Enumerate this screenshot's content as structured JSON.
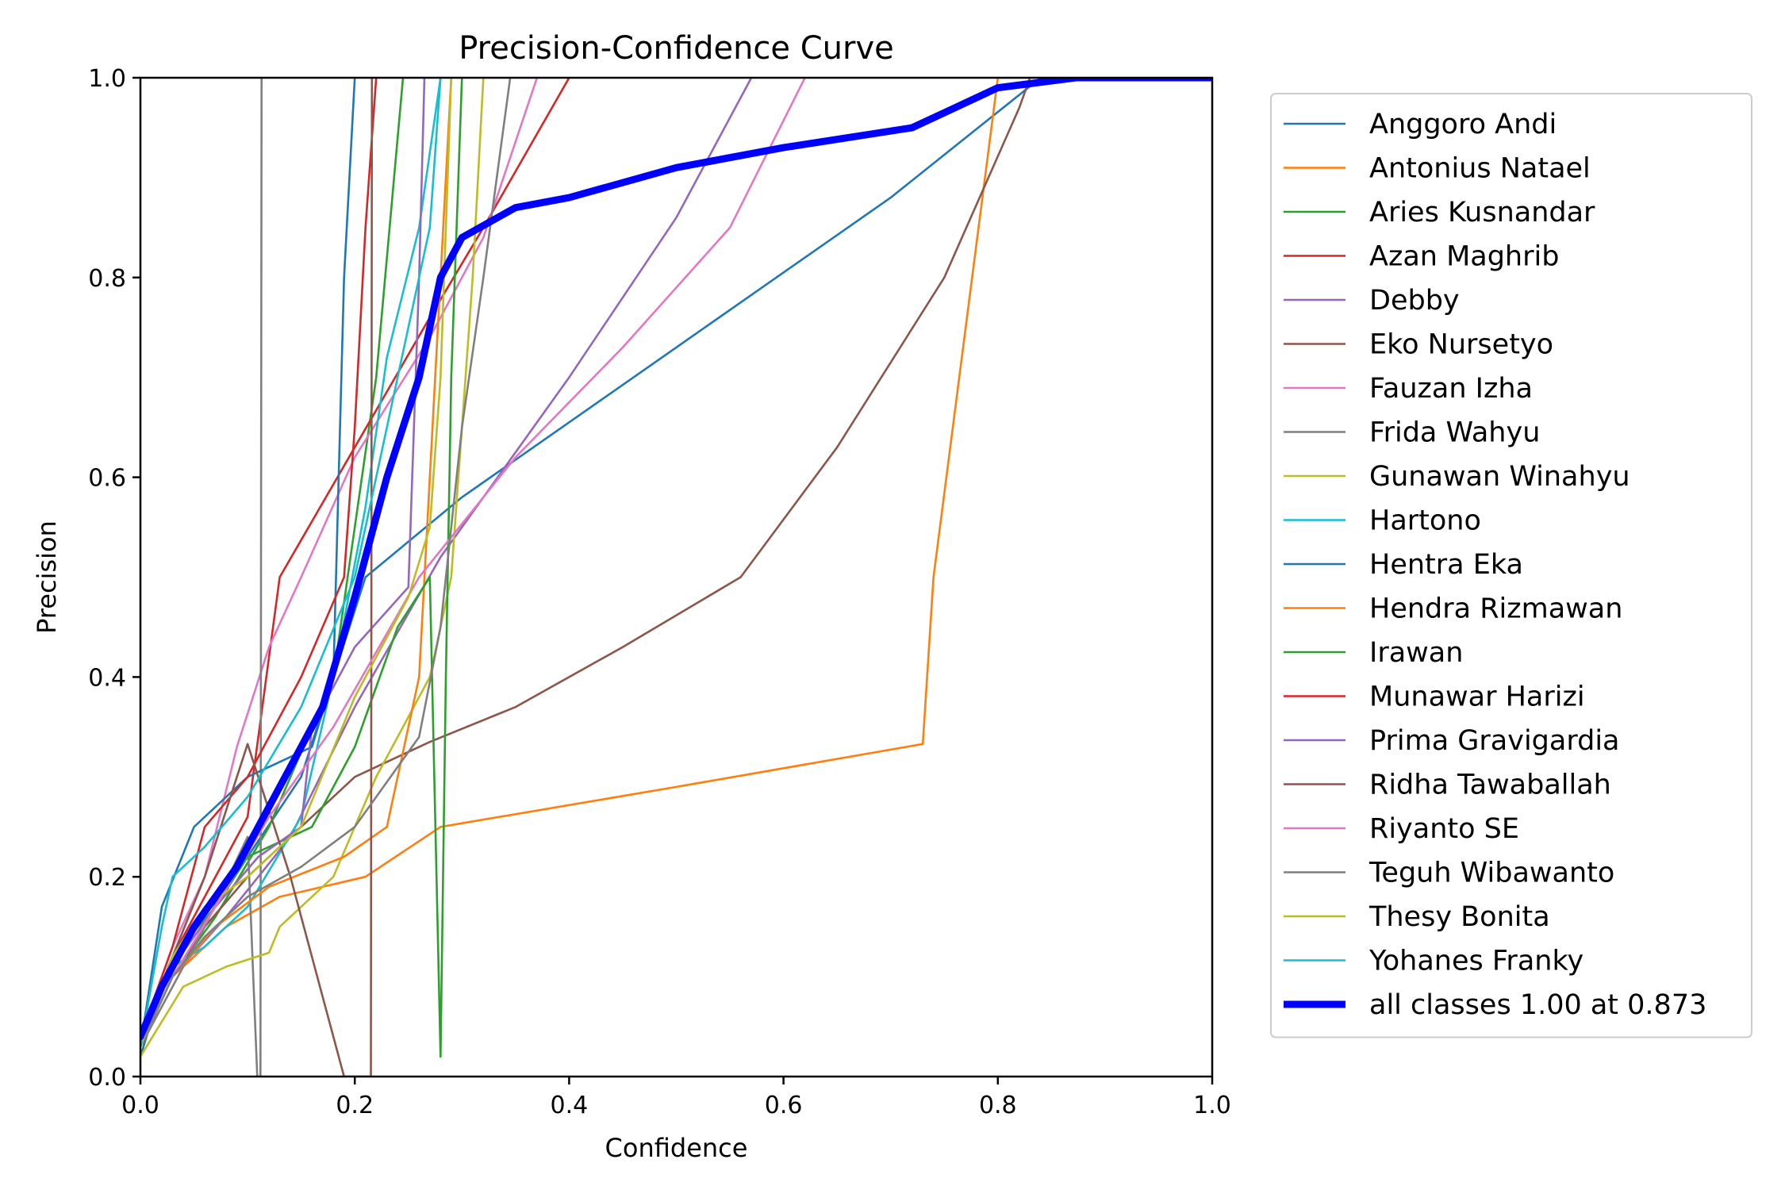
{
  "chart_data": {
    "type": "line",
    "title": "Precision-Confidence Curve",
    "xlabel": "Confidence",
    "ylabel": "Precision",
    "xlim": [
      0,
      1
    ],
    "ylim": [
      0,
      1
    ],
    "xticks": [
      "0.0",
      "0.2",
      "0.4",
      "0.6",
      "0.8",
      "1.0"
    ],
    "yticks": [
      "0.0",
      "0.2",
      "0.4",
      "0.6",
      "0.8",
      "1.0"
    ],
    "grid": false,
    "legend_position": "outside-right",
    "series": [
      {
        "name": "Anggoro Andi",
        "color": "#1f77b4",
        "points": [
          [
            0,
            0.02
          ],
          [
            0.02,
            0.09
          ],
          [
            0.05,
            0.15
          ],
          [
            0.1,
            0.22
          ],
          [
            0.15,
            0.3
          ],
          [
            0.21,
            0.5
          ],
          [
            0.3,
            0.58
          ],
          [
            0.5,
            0.73
          ],
          [
            0.7,
            0.88
          ],
          [
            0.84,
            1.0
          ],
          [
            1.0,
            1.0
          ]
        ]
      },
      {
        "name": "Antonius Natael",
        "color": "#ff7f0e",
        "points": [
          [
            0,
            0.03
          ],
          [
            0.03,
            0.1
          ],
          [
            0.08,
            0.15
          ],
          [
            0.13,
            0.18
          ],
          [
            0.21,
            0.2
          ],
          [
            0.28,
            0.25
          ],
          [
            0.5,
            0.29
          ],
          [
            0.73,
            0.333
          ],
          [
            0.74,
            0.5
          ],
          [
            0.8,
            1.0
          ],
          [
            1.0,
            1.0
          ]
        ]
      },
      {
        "name": "Aries Kusnandar",
        "color": "#2ca02c",
        "points": [
          [
            0,
            0.03
          ],
          [
            0.03,
            0.1
          ],
          [
            0.07,
            0.16
          ],
          [
            0.12,
            0.25
          ],
          [
            0.18,
            0.4
          ],
          [
            0.2,
            0.55
          ],
          [
            0.22,
            0.7
          ],
          [
            0.245,
            1.0
          ]
        ]
      },
      {
        "name": "Azan Maghrib",
        "color": "#d62728",
        "points": [
          [
            0,
            0.04
          ],
          [
            0.03,
            0.12
          ],
          [
            0.07,
            0.2
          ],
          [
            0.1,
            0.26
          ],
          [
            0.13,
            0.5
          ],
          [
            0.2,
            0.63
          ],
          [
            0.27,
            0.76
          ],
          [
            0.32,
            0.85
          ],
          [
            0.4,
            1.0
          ]
        ]
      },
      {
        "name": "Debby",
        "color": "#9467bd",
        "points": [
          [
            0,
            0.03
          ],
          [
            0.03,
            0.1
          ],
          [
            0.08,
            0.16
          ],
          [
            0.14,
            0.24
          ],
          [
            0.2,
            0.37
          ],
          [
            0.28,
            0.52
          ],
          [
            0.4,
            0.7
          ],
          [
            0.5,
            0.86
          ],
          [
            0.57,
            1.0
          ]
        ]
      },
      {
        "name": "Eko Nursetyo",
        "color": "#8c564b",
        "points": [
          [
            0,
            0.03
          ],
          [
            0.03,
            0.1
          ],
          [
            0.06,
            0.15
          ],
          [
            0.1,
            0.2
          ],
          [
            0.15,
            0.25
          ],
          [
            0.2,
            0.3
          ],
          [
            0.27,
            0.335
          ],
          [
            0.35,
            0.37
          ],
          [
            0.45,
            0.43
          ],
          [
            0.56,
            0.5
          ],
          [
            0.65,
            0.63
          ],
          [
            0.75,
            0.8
          ],
          [
            0.82,
            0.97
          ],
          [
            0.83,
            1.0
          ]
        ]
      },
      {
        "name": "Fauzan Izha",
        "color": "#e377c2",
        "points": [
          [
            0,
            0.04
          ],
          [
            0.03,
            0.13
          ],
          [
            0.06,
            0.2
          ],
          [
            0.09,
            0.33
          ],
          [
            0.12,
            0.43
          ],
          [
            0.15,
            0.5
          ],
          [
            0.2,
            0.62
          ],
          [
            0.27,
            0.74
          ],
          [
            0.32,
            0.84
          ],
          [
            0.37,
            1.0
          ]
        ]
      },
      {
        "name": "Frida Wahyu",
        "color": "#7f7f7f",
        "points": [
          [
            0,
            0.03
          ],
          [
            0.03,
            0.09
          ],
          [
            0.06,
            0.15
          ],
          [
            0.1,
            0.24
          ],
          [
            0.109,
            0.0
          ],
          [
            0.112,
            0.0
          ],
          [
            0.113,
            1.0
          ]
        ]
      },
      {
        "name": "Gunawan Winahyu",
        "color": "#bcbd22",
        "points": [
          [
            0,
            0.02
          ],
          [
            0.04,
            0.09
          ],
          [
            0.08,
            0.11
          ],
          [
            0.12,
            0.124
          ],
          [
            0.13,
            0.15
          ],
          [
            0.18,
            0.2
          ],
          [
            0.22,
            0.3
          ],
          [
            0.27,
            0.4
          ],
          [
            0.29,
            0.5
          ],
          [
            0.31,
            0.8
          ],
          [
            0.32,
            1.0
          ]
        ]
      },
      {
        "name": "Hartono",
        "color": "#17becf",
        "points": [
          [
            0,
            0.03
          ],
          [
            0.03,
            0.11
          ],
          [
            0.06,
            0.13
          ],
          [
            0.1,
            0.17
          ],
          [
            0.15,
            0.26
          ],
          [
            0.18,
            0.4
          ],
          [
            0.21,
            0.57
          ],
          [
            0.23,
            0.72
          ],
          [
            0.26,
            0.85
          ],
          [
            0.28,
            1.0
          ]
        ]
      },
      {
        "name": "Hentra Eka",
        "color": "#1f77b4",
        "points": [
          [
            0,
            0.03
          ],
          [
            0.02,
            0.17
          ],
          [
            0.05,
            0.25
          ],
          [
            0.1,
            0.3
          ],
          [
            0.16,
            0.33
          ],
          [
            0.18,
            0.4
          ],
          [
            0.185,
            0.6
          ],
          [
            0.19,
            0.8
          ],
          [
            0.2,
            1.0
          ]
        ]
      },
      {
        "name": "Hendra Rizmawan",
        "color": "#ff7f0e",
        "points": [
          [
            0,
            0.03
          ],
          [
            0.03,
            0.1
          ],
          [
            0.07,
            0.15
          ],
          [
            0.12,
            0.19
          ],
          [
            0.19,
            0.22
          ],
          [
            0.23,
            0.25
          ],
          [
            0.26,
            0.4
          ],
          [
            0.27,
            0.6
          ],
          [
            0.28,
            0.8
          ],
          [
            0.29,
            1.0
          ]
        ]
      },
      {
        "name": "Irawan",
        "color": "#2ca02c",
        "points": [
          [
            0,
            0.03
          ],
          [
            0.03,
            0.12
          ],
          [
            0.07,
            0.17
          ],
          [
            0.1,
            0.22
          ],
          [
            0.16,
            0.25
          ],
          [
            0.2,
            0.33
          ],
          [
            0.24,
            0.45
          ],
          [
            0.27,
            0.5
          ],
          [
            0.28,
            0.02
          ],
          [
            0.285,
            0.4
          ],
          [
            0.29,
            0.7
          ],
          [
            0.3,
            1.0
          ]
        ]
      },
      {
        "name": "Munawar Harizi",
        "color": "#d62728",
        "points": [
          [
            0,
            0.04
          ],
          [
            0.03,
            0.13
          ],
          [
            0.06,
            0.25
          ],
          [
            0.1,
            0.3
          ],
          [
            0.15,
            0.4
          ],
          [
            0.19,
            0.5
          ],
          [
            0.2,
            0.65
          ],
          [
            0.21,
            0.85
          ],
          [
            0.22,
            1.0
          ]
        ]
      },
      {
        "name": "Prima Gravigardia",
        "color": "#9467bd",
        "points": [
          [
            0,
            0.03
          ],
          [
            0.03,
            0.11
          ],
          [
            0.07,
            0.17
          ],
          [
            0.11,
            0.22
          ],
          [
            0.15,
            0.25
          ],
          [
            0.16,
            0.35
          ],
          [
            0.2,
            0.43
          ],
          [
            0.25,
            0.49
          ],
          [
            0.26,
            0.8
          ],
          [
            0.265,
            1.0
          ]
        ]
      },
      {
        "name": "Ridha Tawaballah",
        "color": "#8c564b",
        "points": [
          [
            0,
            0.03
          ],
          [
            0.03,
            0.12
          ],
          [
            0.06,
            0.2
          ],
          [
            0.09,
            0.3
          ],
          [
            0.1,
            0.333
          ],
          [
            0.14,
            0.2
          ],
          [
            0.19,
            0.0
          ],
          [
            0.215,
            0.0
          ],
          [
            0.216,
            1.0
          ]
        ]
      },
      {
        "name": "Riyanto SE",
        "color": "#e377c2",
        "points": [
          [
            0,
            0.03
          ],
          [
            0.03,
            0.1
          ],
          [
            0.07,
            0.17
          ],
          [
            0.12,
            0.26
          ],
          [
            0.18,
            0.35
          ],
          [
            0.26,
            0.5
          ],
          [
            0.35,
            0.62
          ],
          [
            0.45,
            0.73
          ],
          [
            0.55,
            0.85
          ],
          [
            0.62,
            1.0
          ]
        ]
      },
      {
        "name": "Teguh Wibawanto",
        "color": "#7f7f7f",
        "points": [
          [
            0,
            0.03
          ],
          [
            0.03,
            0.1
          ],
          [
            0.06,
            0.14
          ],
          [
            0.1,
            0.18
          ],
          [
            0.15,
            0.21
          ],
          [
            0.2,
            0.25
          ],
          [
            0.26,
            0.34
          ],
          [
            0.28,
            0.45
          ],
          [
            0.3,
            0.65
          ],
          [
            0.32,
            0.8
          ],
          [
            0.345,
            1.0
          ]
        ]
      },
      {
        "name": "Thesy Bonita",
        "color": "#bcbd22",
        "points": [
          [
            0,
            0.03
          ],
          [
            0.03,
            0.12
          ],
          [
            0.06,
            0.17
          ],
          [
            0.1,
            0.2
          ],
          [
            0.15,
            0.25
          ],
          [
            0.2,
            0.38
          ],
          [
            0.25,
            0.48
          ],
          [
            0.27,
            0.55
          ],
          [
            0.28,
            0.7
          ],
          [
            0.29,
            1.0
          ]
        ]
      },
      {
        "name": "Yohanes Franky",
        "color": "#17becf",
        "points": [
          [
            0,
            0.03
          ],
          [
            0.02,
            0.15
          ],
          [
            0.03,
            0.2
          ],
          [
            0.06,
            0.23
          ],
          [
            0.1,
            0.28
          ],
          [
            0.15,
            0.37
          ],
          [
            0.2,
            0.5
          ],
          [
            0.24,
            0.7
          ],
          [
            0.27,
            0.85
          ],
          [
            0.28,
            1.0
          ]
        ]
      },
      {
        "name": "all classes 1.00 at 0.873",
        "color": "#0000ff",
        "bold": true,
        "points": [
          [
            0,
            0.04
          ],
          [
            0.02,
            0.09
          ],
          [
            0.05,
            0.15
          ],
          [
            0.09,
            0.21
          ],
          [
            0.14,
            0.31
          ],
          [
            0.17,
            0.37
          ],
          [
            0.2,
            0.48
          ],
          [
            0.23,
            0.6
          ],
          [
            0.26,
            0.7
          ],
          [
            0.28,
            0.8
          ],
          [
            0.3,
            0.84
          ],
          [
            0.35,
            0.87
          ],
          [
            0.4,
            0.88
          ],
          [
            0.5,
            0.91
          ],
          [
            0.6,
            0.93
          ],
          [
            0.72,
            0.95
          ],
          [
            0.76,
            0.97
          ],
          [
            0.8,
            0.99
          ],
          [
            0.873,
            1.0
          ],
          [
            1.0,
            1.0
          ]
        ]
      }
    ]
  }
}
